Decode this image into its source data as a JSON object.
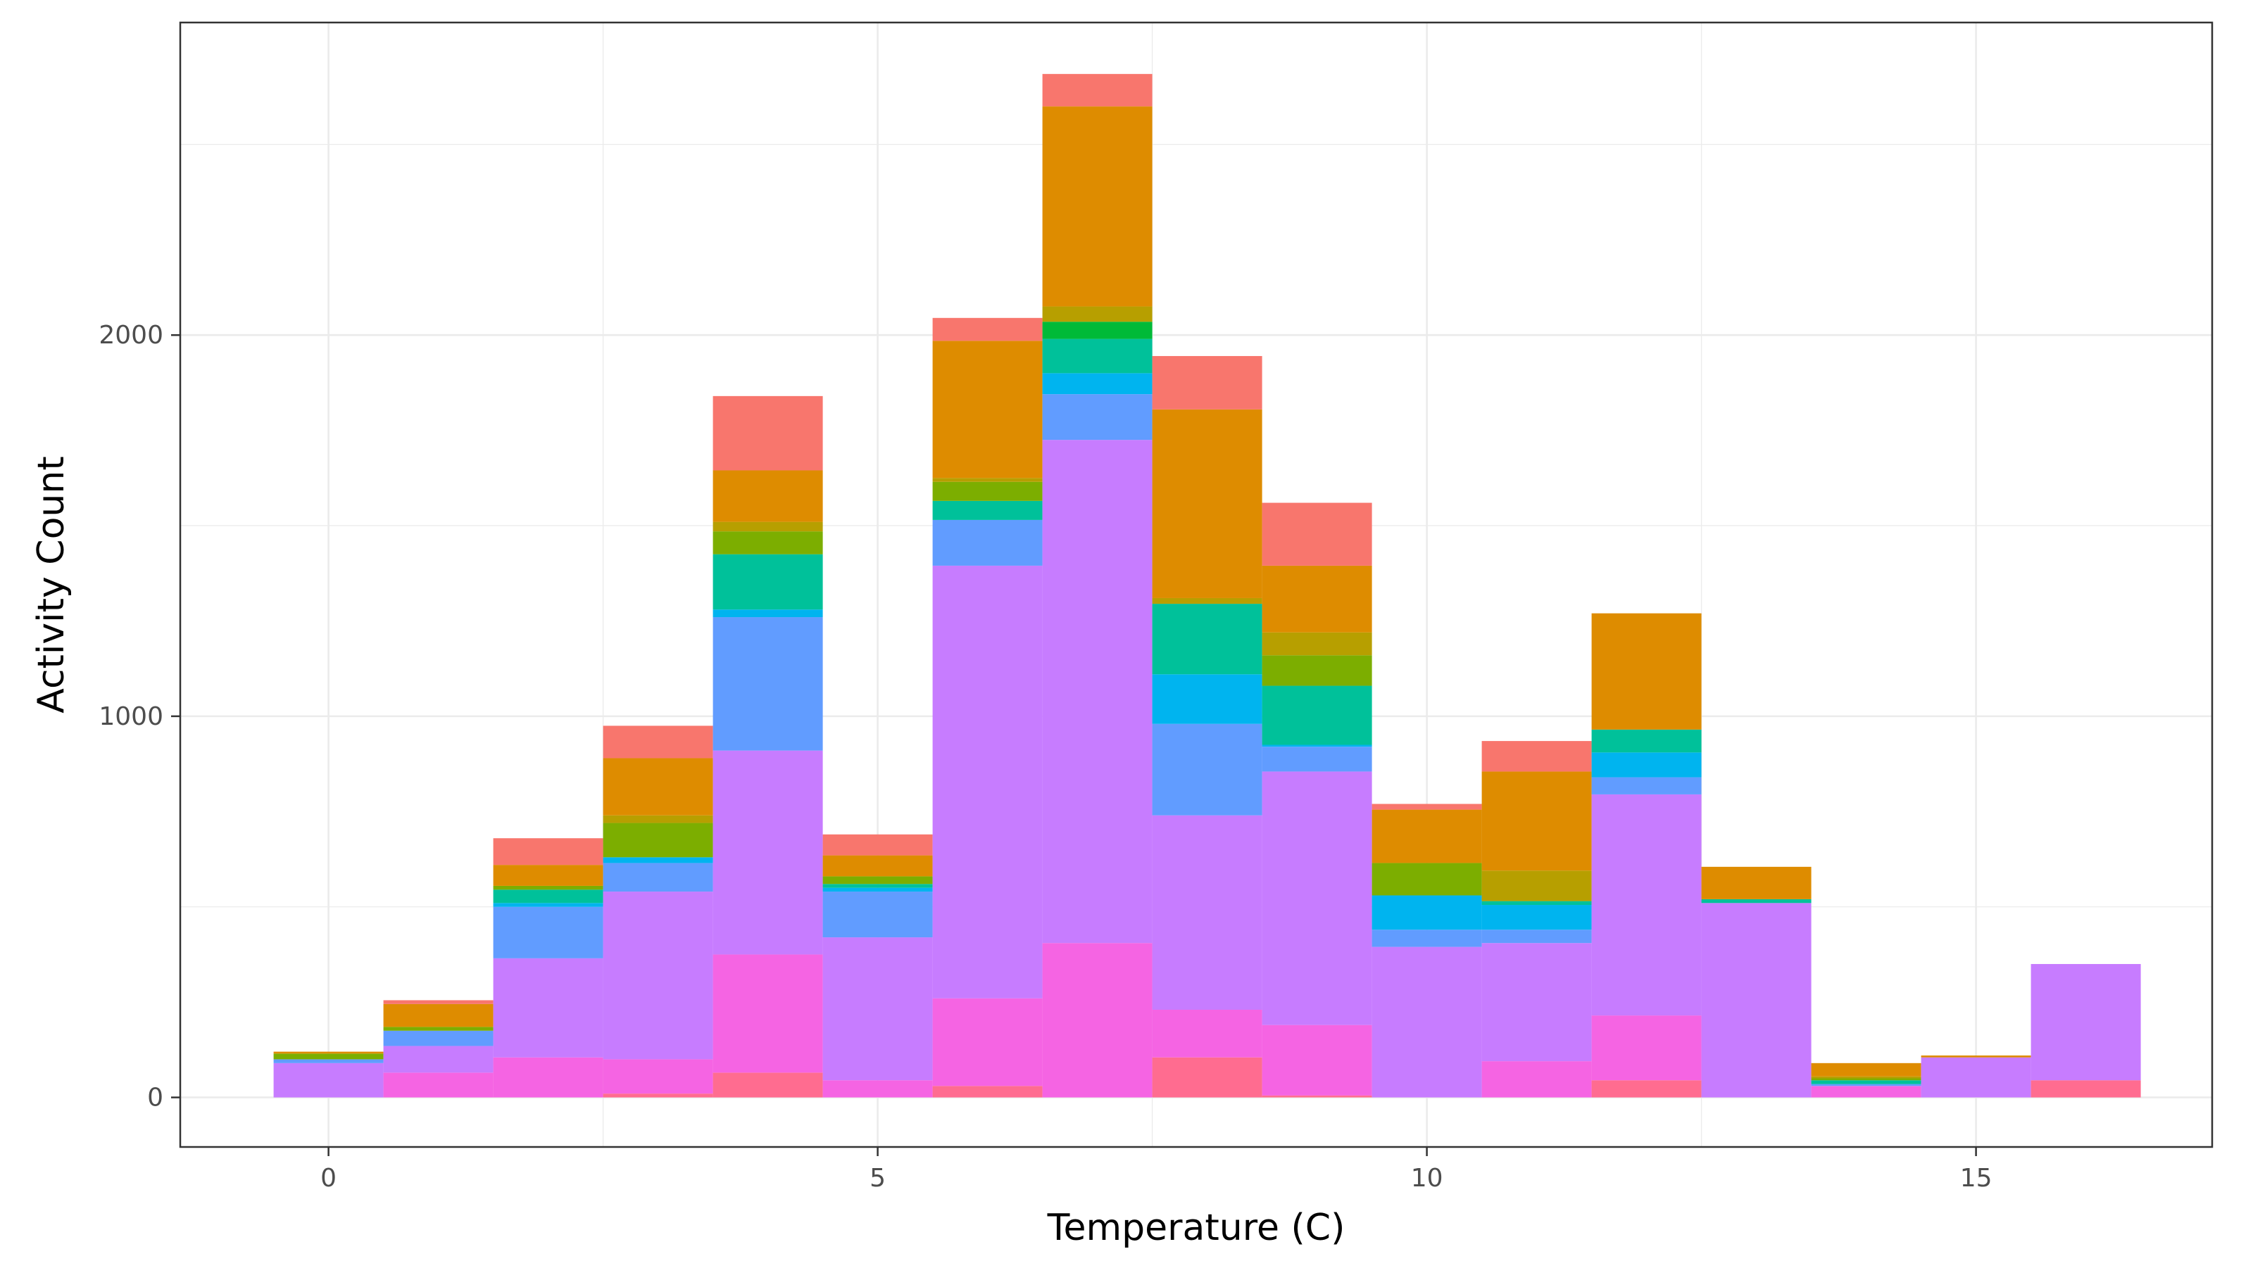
{
  "chart_data": {
    "type": "bar",
    "stacked": true,
    "xlabel": "Temperature (C)",
    "ylabel": "Activity Count",
    "xlim": [
      -1.35,
      17.15
    ],
    "ylim": [
      -130,
      2820
    ],
    "x_ticks": [
      0,
      5,
      10,
      15
    ],
    "y_ticks": [
      0,
      1000,
      2000
    ],
    "grid": true,
    "legend": "none",
    "bin_width": 1,
    "x": [
      0,
      1,
      2,
      3,
      4,
      5,
      6,
      7,
      8,
      9,
      10,
      11,
      12,
      13,
      14,
      15,
      16
    ],
    "colors": [
      "#FF6C90",
      "#F564E3",
      "#C77CFF",
      "#619CFF",
      "#00B4EF",
      "#00C19A",
      "#00BA38",
      "#7CAE00",
      "#B79F00",
      "#DE8C00",
      "#F8766D"
    ],
    "series": [
      {
        "values": [
          0,
          0,
          0,
          10,
          65,
          0,
          30,
          0,
          105,
          5,
          0,
          0,
          45,
          0,
          0,
          0,
          45
        ]
      },
      {
        "values": [
          0,
          65,
          105,
          90,
          310,
          45,
          230,
          405,
          125,
          185,
          0,
          95,
          170,
          0,
          30,
          0,
          0
        ]
      },
      {
        "values": [
          90,
          70,
          260,
          440,
          535,
          375,
          1135,
          1320,
          510,
          665,
          395,
          310,
          580,
          510,
          0,
          105,
          305
        ]
      },
      {
        "values": [
          10,
          40,
          135,
          75,
          350,
          120,
          120,
          120,
          240,
          65,
          45,
          35,
          45,
          0,
          5,
          0,
          0
        ]
      },
      {
        "values": [
          0,
          0,
          10,
          15,
          20,
          10,
          0,
          55,
          130,
          5,
          90,
          65,
          65,
          0,
          0,
          0,
          0
        ]
      },
      {
        "values": [
          0,
          0,
          35,
          0,
          145,
          10,
          50,
          90,
          185,
          155,
          0,
          10,
          60,
          10,
          10,
          0,
          0
        ]
      },
      {
        "values": [
          0,
          0,
          0,
          0,
          0,
          0,
          0,
          45,
          0,
          0,
          0,
          0,
          0,
          0,
          0,
          0,
          0
        ]
      },
      {
        "values": [
          15,
          10,
          10,
          90,
          60,
          20,
          50,
          0,
          0,
          80,
          85,
          0,
          0,
          0,
          5,
          0,
          0
        ]
      },
      {
        "values": [
          0,
          0,
          0,
          20,
          25,
          0,
          10,
          40,
          15,
          60,
          0,
          80,
          0,
          0,
          5,
          0,
          0
        ]
      },
      {
        "values": [
          5,
          60,
          55,
          150,
          135,
          55,
          360,
          525,
          495,
          175,
          140,
          260,
          305,
          85,
          35,
          5,
          0
        ]
      },
      {
        "values": [
          0,
          10,
          70,
          85,
          195,
          55,
          60,
          85,
          140,
          165,
          15,
          80,
          0,
          0,
          0,
          0,
          0
        ]
      }
    ]
  }
}
